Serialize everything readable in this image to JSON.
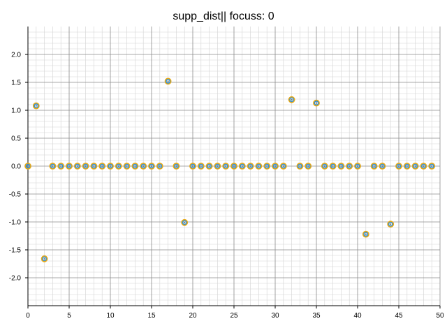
{
  "chart_data": {
    "type": "scatter",
    "title": "supp_dist|| focuss: 0",
    "xlabel": "",
    "ylabel": "",
    "xlim": [
      0,
      50
    ],
    "ylim": [
      -2.5,
      2.5
    ],
    "x_ticks": [
      0,
      5,
      10,
      15,
      20,
      25,
      30,
      35,
      40,
      45,
      50
    ],
    "x_tick_labels": [
      "0",
      "5",
      "10",
      "15",
      "20",
      "25",
      "30",
      "35",
      "40",
      "45",
      "50"
    ],
    "y_ticks": [
      2.0,
      1.5,
      1.0,
      0.5,
      0.0,
      -0.5,
      -1.0,
      -1.5,
      -2.0
    ],
    "y_tick_labels": [
      "2.0",
      "1.5",
      "1.0",
      "0.5",
      "0.0",
      "-0.5",
      "-1.0",
      "-1.5",
      "-2.0"
    ],
    "grid": true,
    "minor_grid": true,
    "marker_colors": {
      "outer": "#e6a817",
      "ring": "#2a8fd6",
      "center": "#7a7a7a"
    },
    "grid_colors": {
      "major": "#8c8c8c",
      "minor": "#d3d3d3"
    },
    "series": [
      {
        "name": "supp_dist",
        "x": [
          0,
          1,
          2,
          3,
          4,
          5,
          6,
          7,
          8,
          9,
          10,
          11,
          12,
          13,
          14,
          15,
          16,
          17,
          18,
          19,
          20,
          21,
          22,
          23,
          24,
          25,
          26,
          27,
          28,
          29,
          30,
          31,
          32,
          33,
          34,
          35,
          36,
          37,
          38,
          39,
          40,
          41,
          42,
          43,
          44,
          45,
          46,
          47,
          48,
          49
        ],
        "y": [
          0,
          1.08,
          -1.66,
          0,
          0,
          0,
          0,
          0,
          0,
          0,
          0,
          0,
          0,
          0,
          0,
          0,
          0,
          1.52,
          0,
          -1.01,
          0,
          0,
          0,
          0,
          0,
          0,
          0,
          0,
          0,
          0,
          0,
          0,
          1.19,
          0,
          0,
          1.13,
          0,
          0,
          0,
          0,
          0,
          -1.22,
          0,
          0,
          -1.04,
          0,
          0,
          0,
          0,
          0
        ]
      }
    ]
  }
}
